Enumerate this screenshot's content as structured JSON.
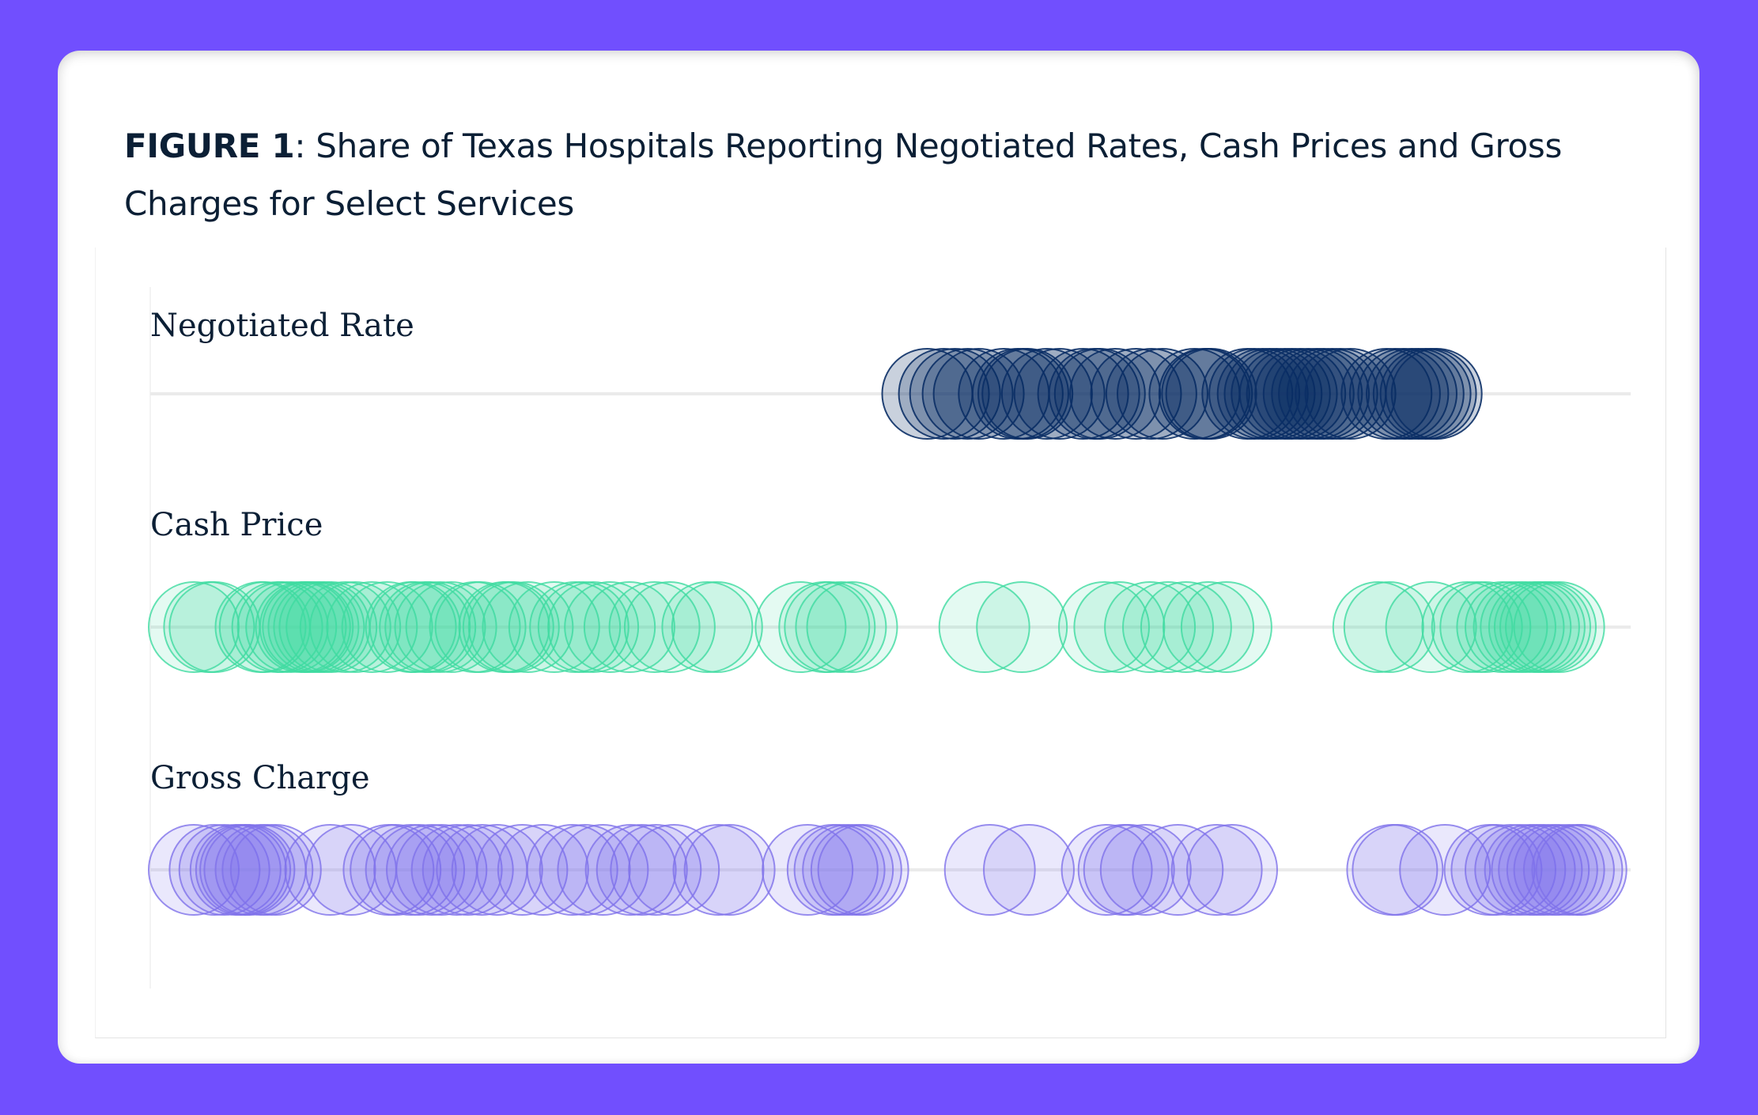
{
  "figure": {
    "label": "FIGURE 1",
    "title_rest": ": Share of Texas Hospitals Reporting Negotiated Rates, Cash Prices and Gross Charges for Select Services"
  },
  "colors": {
    "background": "#714ffe",
    "negotiated": "#0b2f66",
    "cash": "#3fdba0",
    "gross": "#7f72ea",
    "axis_line": "#ebebeb",
    "text": "#0b1f35"
  },
  "chart_data": {
    "type": "scatter",
    "title": "Share of Texas Hospitals Reporting Negotiated Rates, Cash Prices and Gross Charges for Select Services",
    "xlabel": "",
    "ylabel": "",
    "xlim": [
      0,
      100
    ],
    "unit": "% of hospitals (estimated)",
    "grid": false,
    "series": [
      {
        "name": "Negotiated Rate",
        "color": "#0b2f66",
        "values": [
          52.7,
          53.9,
          54.7,
          55.6,
          56.4,
          58.2,
          59.2,
          59.6,
          59.9,
          61.3,
          62.2,
          63.9,
          64.7,
          65.1,
          66.2,
          67.7,
          68.8,
          69.6,
          71.9,
          72.6,
          72.8,
          73.1,
          75.7,
          76.2,
          76.8,
          77.3,
          77.8,
          78.4,
          78.9,
          79.5,
          80.1,
          80.7,
          81.2,
          81.8,
          82.4,
          83.1,
          85.7,
          86.3,
          86.9,
          87.5,
          88.0,
          88.5,
          88.9,
          89.3
        ]
      },
      {
        "name": "Cash Price",
        "color": "#3fdba0",
        "values": [
          0.0,
          1.1,
          1.5,
          4.8,
          5.1,
          6.0,
          6.4,
          7.0,
          7.7,
          8.0,
          8.2,
          8.6,
          9.0,
          9.4,
          9.9,
          10.9,
          11.6,
          12.8,
          13.9,
          15.6,
          15.9,
          16.6,
          17.0,
          17.7,
          18.5,
          20.2,
          20.6,
          22.3,
          22.6,
          23.0,
          24.0,
          25.9,
          27.4,
          28.0,
          28.7,
          29.9,
          31.3,
          33.1,
          34.2,
          36.9,
          37.6,
          43.6,
          45.3,
          45.7,
          46.5,
          47.3,
          56.8,
          59.5,
          65.4,
          66.5,
          68.7,
          70.0,
          71.3,
          72.9,
          74.2,
          85.1,
          85.9,
          88.9,
          91.5,
          92.2,
          92.8,
          94.0,
          94.6,
          95.2,
          95.7,
          96.3,
          96.7,
          97.1,
          97.5,
          98.1
        ]
      },
      {
        "name": "Gross Charge",
        "color": "#7f72ea",
        "values": [
          0.0,
          1.5,
          2.2,
          3.0,
          3.4,
          3.7,
          4.0,
          4.8,
          5.3,
          5.9,
          9.8,
          11.3,
          14.0,
          14.5,
          15.6,
          16.2,
          17.1,
          17.8,
          18.9,
          19.7,
          20.7,
          21.8,
          23.6,
          25.1,
          27.2,
          28.1,
          29.4,
          31.4,
          32.2,
          33.2,
          34.5,
          37.7,
          38.5,
          44.1,
          45.9,
          46.4,
          47.0,
          47.6,
          48.1,
          57.2,
          60.0,
          65.6,
          66.8,
          67.2,
          68.4,
          70.7,
          73.5,
          74.6,
          86.1,
          86.5,
          89.9,
          93.1,
          93.6,
          94.6,
          95.3,
          96.0,
          96.5,
          97.0,
          97.6,
          98.1,
          98.8,
          99.4,
          99.7
        ]
      }
    ]
  }
}
